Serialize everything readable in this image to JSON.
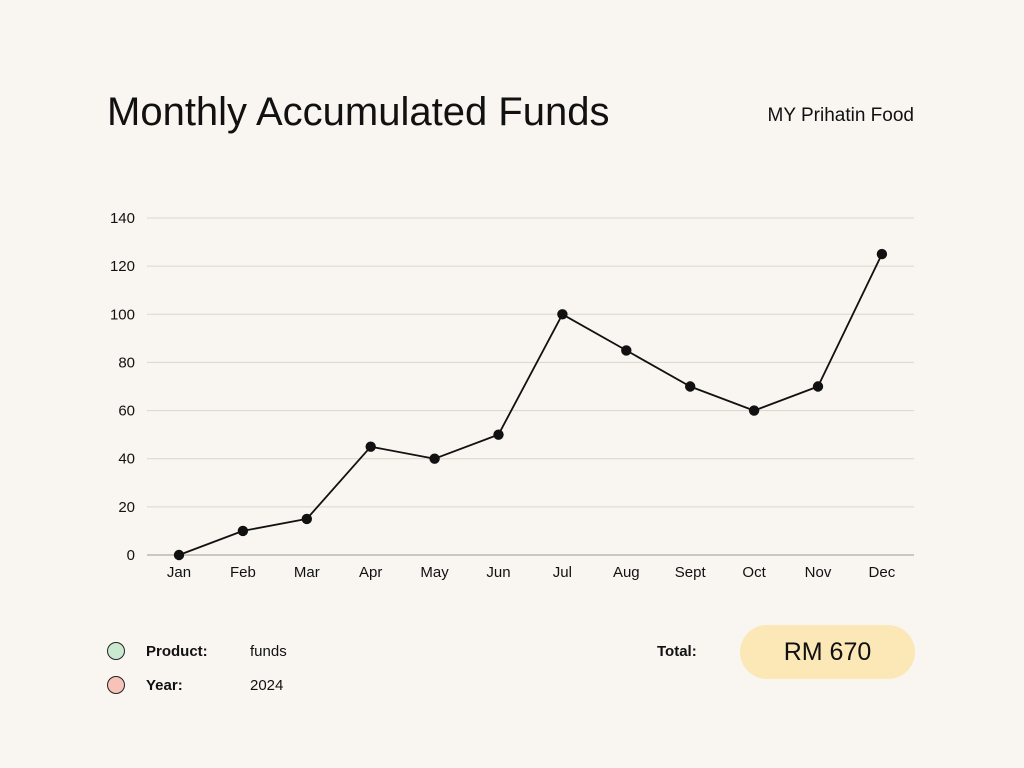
{
  "header": {
    "title": "Monthly Accumulated Funds",
    "brand": "MY Prihatin Food"
  },
  "chart_data": {
    "type": "line",
    "title": "Monthly Accumulated Funds",
    "categories": [
      "Jan",
      "Feb",
      "Mar",
      "Apr",
      "May",
      "Jun",
      "Jul",
      "Aug",
      "Sept",
      "Oct",
      "Nov",
      "Dec"
    ],
    "values": [
      0,
      10,
      15,
      45,
      40,
      50,
      100,
      85,
      70,
      60,
      70,
      125
    ],
    "ylim": [
      0,
      140
    ],
    "yticks": [
      0,
      20,
      40,
      60,
      80,
      100,
      120,
      140
    ],
    "grid": true,
    "markers": true,
    "line_color": "#111111",
    "grid_color": "#d9d6d0"
  },
  "legend": {
    "items": [
      {
        "key": "Product:",
        "value": "funds",
        "color": "#c9ead0"
      },
      {
        "key": "Year:",
        "value": "2024",
        "color": "#f7c2b8"
      }
    ]
  },
  "summary": {
    "total_label": "Total:",
    "total_value": "RM 670",
    "pill_color": "#fce7b6"
  },
  "colors": {
    "background": "#f9f6f1"
  }
}
